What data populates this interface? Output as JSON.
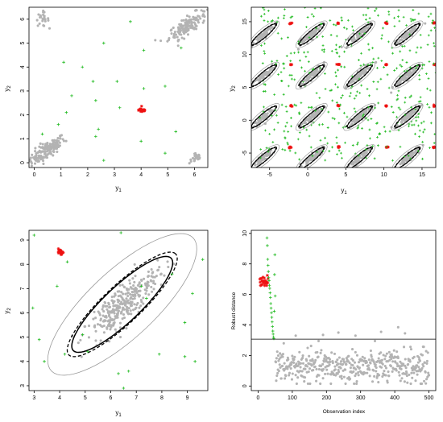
{
  "colors": {
    "grey_points": "#b3b3b3",
    "green_points": "#22bb22",
    "red_points": "#ee1111",
    "ellipse_black": "#000000",
    "ellipse_grey": "#9a9a9a",
    "cutoff_line": "#000000"
  },
  "chart_data": [
    {
      "type": "scatter",
      "id": "torus-data",
      "xlabel": "y",
      "xlabel_sub": "1",
      "ylabel": "y",
      "ylabel_sub": "2",
      "xlim": [
        -0.2,
        6.5
      ],
      "ylim": [
        -0.2,
        6.5
      ],
      "x_ticks": [
        0,
        1,
        2,
        3,
        4,
        5,
        6
      ],
      "y_ticks": [
        0,
        1,
        2,
        3,
        4,
        5,
        6
      ],
      "clusters": [
        {
          "name": "bulk-lower-left",
          "color": "grey",
          "center": [
            0.45,
            0.5
          ],
          "count": 150,
          "spread_x": 0.35,
          "spread_y": 0.3,
          "corr": 0.8
        },
        {
          "name": "bulk-upper-right",
          "color": "grey",
          "center": [
            5.75,
            5.75
          ],
          "count": 150,
          "spread_x": 0.35,
          "spread_y": 0.3,
          "corr": 0.8
        },
        {
          "name": "corner-top-left",
          "color": "grey",
          "center": [
            0.3,
            6.0
          ],
          "count": 25,
          "spread_x": 0.12,
          "spread_y": 0.15,
          "corr": 0
        },
        {
          "name": "corner-bottom-right",
          "color": "grey",
          "center": [
            6.05,
            0.2
          ],
          "count": 20,
          "spread_x": 0.12,
          "spread_y": 0.12,
          "corr": 0
        },
        {
          "name": "outlier-cluster",
          "color": "red",
          "center": [
            4.05,
            2.2
          ],
          "count": 25,
          "spread_x": 0.07,
          "spread_y": 0.05,
          "corr": 0
        }
      ],
      "green_points": [
        [
          1.1,
          4.2
        ],
        [
          1.8,
          4.0
        ],
        [
          3.6,
          5.9
        ],
        [
          2.6,
          5.0
        ],
        [
          2.2,
          3.4
        ],
        [
          3.1,
          3.4
        ],
        [
          1.4,
          2.8
        ],
        [
          2.3,
          2.6
        ],
        [
          1.2,
          2.1
        ],
        [
          2.4,
          1.4
        ],
        [
          2.3,
          1.1
        ],
        [
          0.9,
          1.6
        ],
        [
          0.3,
          1.2
        ],
        [
          5.3,
          1.3
        ],
        [
          4.0,
          0.9
        ],
        [
          4.9,
          0.4
        ],
        [
          2.6,
          0.1
        ],
        [
          4.1,
          3.1
        ],
        [
          3.2,
          2.3
        ],
        [
          4.9,
          3.2
        ],
        [
          5.5,
          4.8
        ],
        [
          4.1,
          4.7
        ]
      ]
    },
    {
      "type": "scatter",
      "id": "unwrapped-data",
      "xlabel": "y",
      "xlabel_sub": "1",
      "ylabel": "y",
      "ylabel_sub": "2",
      "xlim": [
        -7.4,
        16.8
      ],
      "ylim": [
        -7.2,
        17.2
      ],
      "x_ticks": [
        -5,
        0,
        5,
        10,
        15
      ],
      "y_ticks": [
        -5,
        0,
        5,
        10,
        15
      ],
      "period": 6.2832,
      "copies_x": [
        -1,
        0,
        1,
        2
      ],
      "copies_y": [
        -1,
        0,
        1,
        2
      ],
      "base_center": [
        0.5,
        0.5
      ],
      "ellipse_black_axes": [
        2.2,
        0.45
      ],
      "ellipse_grey_axes": [
        2.8,
        0.8
      ],
      "ellipse_angle_deg": 45,
      "red_base": [
        4.05,
        2.2
      ],
      "green_per_cell": 30
    },
    {
      "type": "scatter",
      "id": "zoomed-tolerance",
      "xlabel": "y",
      "xlabel_sub": "1",
      "ylabel": "y",
      "ylabel_sub": "2",
      "xlim": [
        2.8,
        9.8
      ],
      "ylim": [
        2.8,
        9.4
      ],
      "x_ticks": [
        3,
        4,
        5,
        6,
        7,
        8,
        9
      ],
      "y_ticks": [
        3,
        4,
        5,
        6,
        7,
        8,
        9
      ],
      "bulk": {
        "center": [
          6.45,
          6.35
        ],
        "count": 300,
        "spread_major": 0.95,
        "spread_minor": 0.3,
        "angle_deg": 45
      },
      "red_cluster": {
        "center": [
          4.05,
          8.5
        ],
        "count": 25,
        "spread": 0.05
      },
      "ellipse_solid": {
        "center": [
          6.45,
          6.35
        ],
        "a": 2.7,
        "b": 0.72,
        "angle_deg": 45
      },
      "ellipse_dashed": {
        "center": [
          6.45,
          6.35
        ],
        "a": 2.95,
        "b": 0.76,
        "angle_deg": 45
      },
      "ellipse_grey": {
        "center": [
          6.45,
          6.35
        ],
        "a": 3.9,
        "b": 1.35,
        "angle_deg": 45
      },
      "green_points": [
        [
          3.0,
          9.2
        ],
        [
          4.3,
          8.1
        ],
        [
          3.9,
          7.1
        ],
        [
          2.95,
          6.2
        ],
        [
          3.2,
          4.9
        ],
        [
          3.4,
          4.0
        ],
        [
          4.2,
          4.3
        ],
        [
          4.9,
          5.1
        ],
        [
          5.1,
          4.4
        ],
        [
          6.4,
          9.3
        ],
        [
          7.2,
          7.1
        ],
        [
          8.4,
          7.6
        ],
        [
          6.3,
          3.5
        ],
        [
          6.7,
          3.6
        ],
        [
          6.5,
          2.9
        ],
        [
          7.9,
          4.3
        ],
        [
          8.9,
          4.2
        ],
        [
          9.6,
          8.2
        ],
        [
          9.2,
          6.8
        ],
        [
          8.9,
          5.6
        ],
        [
          9.3,
          4.0
        ],
        [
          7.4,
          6.6
        ]
      ]
    },
    {
      "type": "scatter",
      "id": "robust-distance",
      "xlabel": "Observation index",
      "ylabel": "Robust distance",
      "xlim": [
        -20,
        520
      ],
      "ylim": [
        -0.3,
        10.2
      ],
      "x_ticks": [
        0,
        100,
        200,
        300,
        400,
        500
      ],
      "y_ticks": [
        0,
        2,
        4,
        6,
        8,
        10
      ],
      "cutoff": 3.07,
      "red_range_index": [
        1,
        25
      ],
      "red_distance_mean": 6.85,
      "green_range_index": [
        26,
        50
      ],
      "green_distances": [
        9.7,
        9.2,
        8.3,
        7.9,
        7.5,
        7.1,
        6.9,
        6.6,
        6.4,
        6.1,
        5.8,
        5.4,
        5.1,
        4.8,
        4.5,
        4.2,
        3.9,
        3.6,
        3.4,
        3.2,
        3.1,
        4.9,
        7.3,
        8.6,
        5.9
      ],
      "grey_range_index": [
        51,
        500
      ],
      "grey_distance_mean": 1.25,
      "grey_high_points": [
        [
          110,
          3.3
        ],
        [
          190,
          3.35
        ],
        [
          235,
          3.5
        ],
        [
          285,
          3.3
        ],
        [
          360,
          3.55
        ],
        [
          430,
          3.45
        ],
        [
          410,
          3.85
        ]
      ]
    }
  ]
}
